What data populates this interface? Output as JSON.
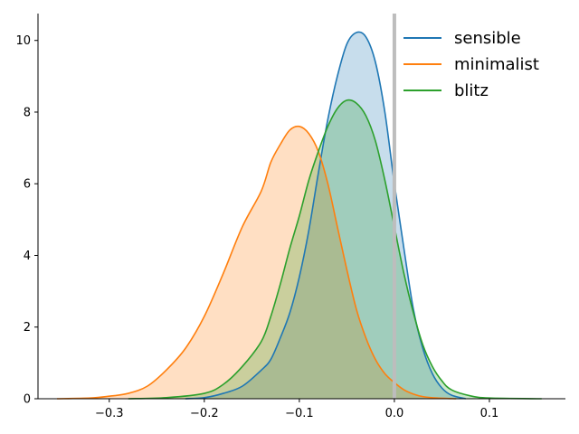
{
  "chart_data": {
    "type": "area",
    "title": "",
    "xlabel": "",
    "ylabel": "",
    "xlim": [
      -0.375,
      0.18
    ],
    "ylim": [
      0,
      10.75
    ],
    "xticks": [
      -0.3,
      -0.2,
      -0.1,
      0.0,
      0.1
    ],
    "xtick_labels": [
      "−0.3",
      "−0.2",
      "−0.1",
      "0.0",
      "0.1"
    ],
    "yticks": [
      0,
      2,
      4,
      6,
      8,
      10
    ],
    "ytick_labels": [
      "0",
      "2",
      "4",
      "6",
      "8",
      "10"
    ],
    "grid": false,
    "legend_position": "top-right",
    "reference_line": {
      "x": 0.0,
      "color": "#bdbdbd"
    },
    "series": [
      {
        "name": "sensible",
        "color": "#1f77b4",
        "points": [
          [
            -0.22,
            0.0
          ],
          [
            -0.2,
            0.03
          ],
          [
            -0.18,
            0.15
          ],
          [
            -0.16,
            0.35
          ],
          [
            -0.14,
            0.8
          ],
          [
            -0.13,
            1.1
          ],
          [
            -0.12,
            1.7
          ],
          [
            -0.11,
            2.4
          ],
          [
            -0.1,
            3.4
          ],
          [
            -0.09,
            4.7
          ],
          [
            -0.08,
            6.3
          ],
          [
            -0.07,
            7.8
          ],
          [
            -0.06,
            9.0
          ],
          [
            -0.05,
            9.9
          ],
          [
            -0.04,
            10.22
          ],
          [
            -0.03,
            10.1
          ],
          [
            -0.02,
            9.4
          ],
          [
            -0.01,
            8.0
          ],
          [
            0.0,
            6.0
          ],
          [
            0.01,
            4.2
          ],
          [
            0.02,
            2.5
          ],
          [
            0.03,
            1.4
          ],
          [
            0.04,
            0.7
          ],
          [
            0.05,
            0.3
          ],
          [
            0.06,
            0.1
          ],
          [
            0.075,
            0.0
          ]
        ]
      },
      {
        "name": "minimalist",
        "color": "#ff7f0e",
        "points": [
          [
            -0.355,
            0.0
          ],
          [
            -0.32,
            0.02
          ],
          [
            -0.3,
            0.07
          ],
          [
            -0.28,
            0.15
          ],
          [
            -0.26,
            0.35
          ],
          [
            -0.24,
            0.8
          ],
          [
            -0.22,
            1.4
          ],
          [
            -0.2,
            2.3
          ],
          [
            -0.18,
            3.5
          ],
          [
            -0.16,
            4.8
          ],
          [
            -0.14,
            5.8
          ],
          [
            -0.13,
            6.6
          ],
          [
            -0.12,
            7.1
          ],
          [
            -0.11,
            7.5
          ],
          [
            -0.1,
            7.6
          ],
          [
            -0.09,
            7.4
          ],
          [
            -0.08,
            6.9
          ],
          [
            -0.07,
            6.0
          ],
          [
            -0.06,
            4.8
          ],
          [
            -0.05,
            3.6
          ],
          [
            -0.04,
            2.5
          ],
          [
            -0.03,
            1.7
          ],
          [
            -0.02,
            1.1
          ],
          [
            -0.01,
            0.7
          ],
          [
            0.0,
            0.45
          ],
          [
            0.01,
            0.25
          ],
          [
            0.02,
            0.13
          ],
          [
            0.03,
            0.06
          ],
          [
            0.045,
            0.02
          ],
          [
            0.065,
            0.0
          ]
        ]
      },
      {
        "name": "blitz",
        "color": "#2ca02c",
        "points": [
          [
            -0.28,
            0.0
          ],
          [
            -0.24,
            0.03
          ],
          [
            -0.2,
            0.15
          ],
          [
            -0.18,
            0.4
          ],
          [
            -0.16,
            0.9
          ],
          [
            -0.14,
            1.6
          ],
          [
            -0.13,
            2.3
          ],
          [
            -0.12,
            3.2
          ],
          [
            -0.11,
            4.2
          ],
          [
            -0.1,
            5.1
          ],
          [
            -0.09,
            6.1
          ],
          [
            -0.08,
            6.9
          ],
          [
            -0.07,
            7.6
          ],
          [
            -0.06,
            8.1
          ],
          [
            -0.05,
            8.33
          ],
          [
            -0.04,
            8.25
          ],
          [
            -0.03,
            7.9
          ],
          [
            -0.02,
            7.2
          ],
          [
            -0.01,
            6.1
          ],
          [
            0.0,
            4.8
          ],
          [
            0.01,
            3.5
          ],
          [
            0.02,
            2.4
          ],
          [
            0.03,
            1.5
          ],
          [
            0.04,
            0.9
          ],
          [
            0.05,
            0.5
          ],
          [
            0.06,
            0.25
          ],
          [
            0.08,
            0.08
          ],
          [
            0.1,
            0.02
          ],
          [
            0.155,
            0.0
          ]
        ]
      }
    ]
  }
}
